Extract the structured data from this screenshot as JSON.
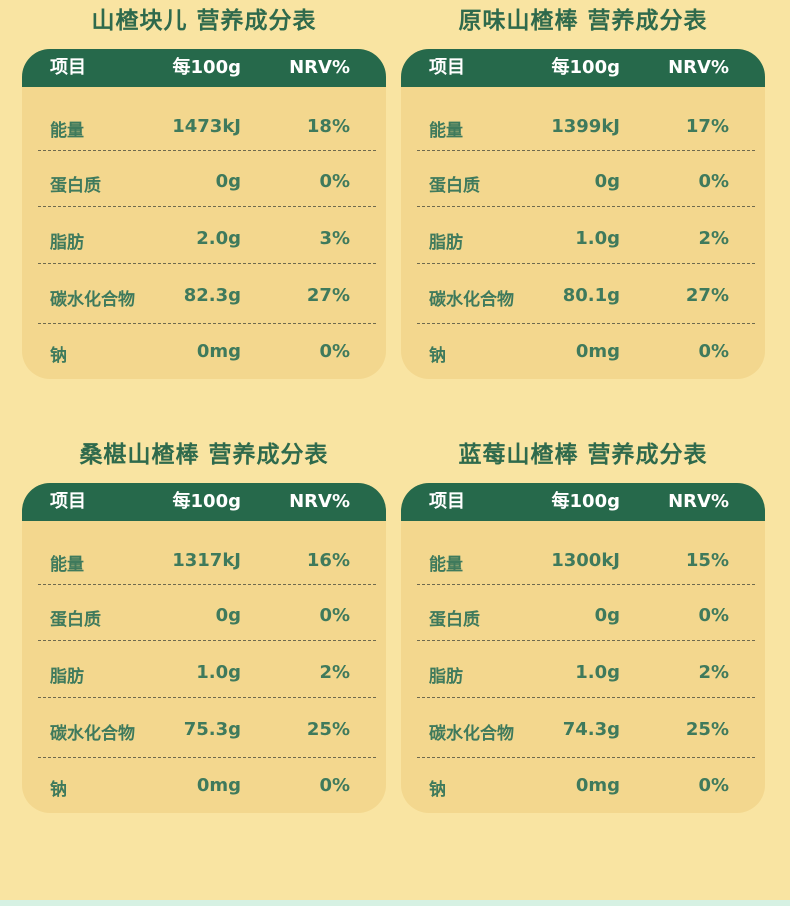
{
  "header": {
    "col_item": "项目",
    "col_per100g": "每100g",
    "col_nrv": "NRV%"
  },
  "panels": [
    {
      "title": "山楂块儿 营养成分表",
      "rows": [
        {
          "name": "能量",
          "amount": "1473kJ",
          "nrv": "18%"
        },
        {
          "name": "蛋白质",
          "amount": "0g",
          "nrv": "0%"
        },
        {
          "name": "脂肪",
          "amount": "2.0g",
          "nrv": "3%"
        },
        {
          "name": "碳水化合物",
          "amount": "82.3g",
          "nrv": "27%"
        },
        {
          "name": "钠",
          "amount": "0mg",
          "nrv": "0%"
        }
      ]
    },
    {
      "title": "原味山楂棒 营养成分表",
      "rows": [
        {
          "name": "能量",
          "amount": "1399kJ",
          "nrv": "17%"
        },
        {
          "name": "蛋白质",
          "amount": "0g",
          "nrv": "0%"
        },
        {
          "name": "脂肪",
          "amount": "1.0g",
          "nrv": "2%"
        },
        {
          "name": "碳水化合物",
          "amount": "80.1g",
          "nrv": "27%"
        },
        {
          "name": "钠",
          "amount": "0mg",
          "nrv": "0%"
        }
      ]
    },
    {
      "title": "桑椹山楂棒 营养成分表",
      "rows": [
        {
          "name": "能量",
          "amount": "1317kJ",
          "nrv": "16%"
        },
        {
          "name": "蛋白质",
          "amount": "0g",
          "nrv": "0%"
        },
        {
          "name": "脂肪",
          "amount": "1.0g",
          "nrv": "2%"
        },
        {
          "name": "碳水化合物",
          "amount": "75.3g",
          "nrv": "25%"
        },
        {
          "name": "钠",
          "amount": "0mg",
          "nrv": "0%"
        }
      ]
    },
    {
      "title": "蓝莓山楂棒 营养成分表",
      "rows": [
        {
          "name": "能量",
          "amount": "1300kJ",
          "nrv": "15%"
        },
        {
          "name": "蛋白质",
          "amount": "0g",
          "nrv": "0%"
        },
        {
          "name": "脂肪",
          "amount": "1.0g",
          "nrv": "2%"
        },
        {
          "name": "碳水化合物",
          "amount": "74.3g",
          "nrv": "25%"
        },
        {
          "name": "钠",
          "amount": "0mg",
          "nrv": "0%"
        }
      ]
    }
  ]
}
